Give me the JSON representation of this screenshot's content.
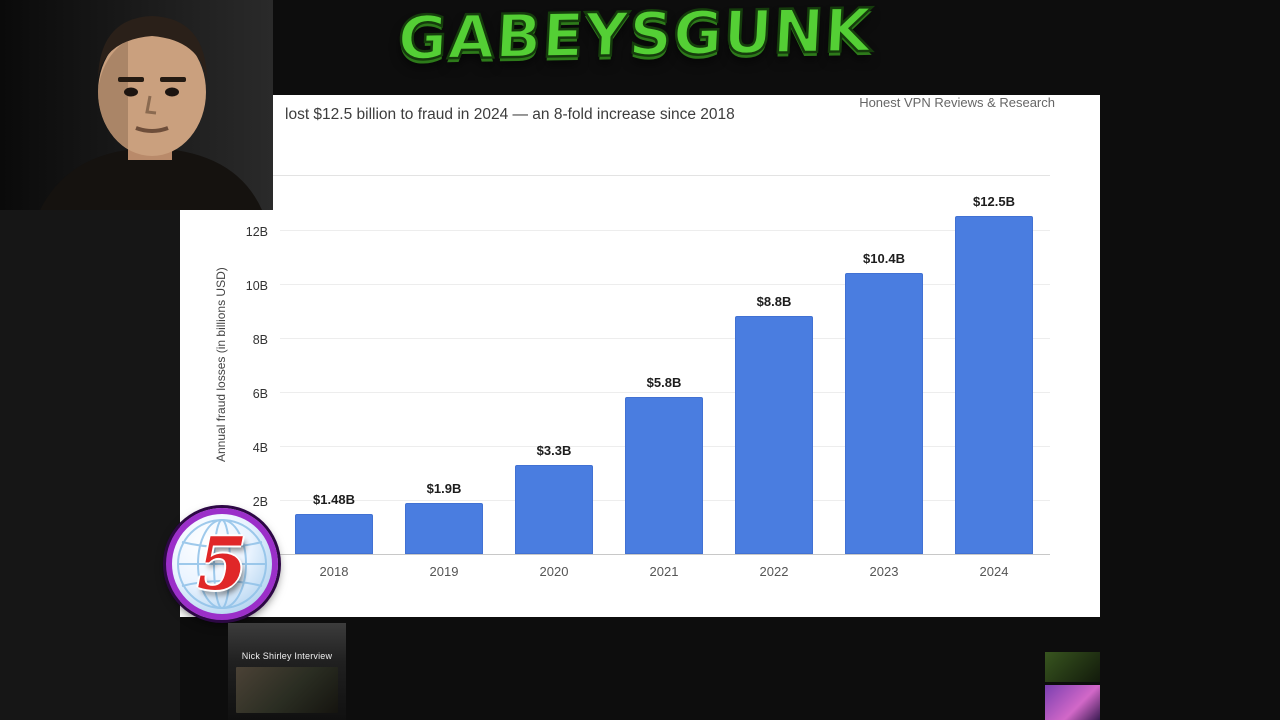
{
  "overlay": {
    "graffiti_text": "GABEYSGUNK",
    "graffiti_color": "#54cf35",
    "logo": {
      "number": "5",
      "ring_color": "#9b2fc9",
      "number_color": "#e02728"
    },
    "bottom_left_caption": "Nick Shirley Interview"
  },
  "chart_panel": {
    "headline": "lost $12.5 billion to fraud in 2024 — an 8-fold increase since 2018",
    "attribution": "Honest VPN Reviews & Research"
  },
  "chart_data": {
    "type": "bar",
    "title": "lost $12.5 billion to fraud in 2024 — an 8-fold increase since 2018",
    "categories": [
      "2018",
      "2019",
      "2020",
      "2021",
      "2022",
      "2023",
      "2024"
    ],
    "values": [
      1.48,
      1.9,
      3.3,
      5.8,
      8.8,
      10.4,
      12.5
    ],
    "value_labels": [
      "$1.48B",
      "$1.9B",
      "$3.3B",
      "$5.8B",
      "$8.8B",
      "$10.4B",
      "$12.5B"
    ],
    "xlabel": "",
    "ylabel": "Annual fraud losses (in billions USD)",
    "yticks": [
      "2B",
      "4B",
      "6B",
      "8B",
      "10B",
      "12B"
    ],
    "ytick_values": [
      2,
      4,
      6,
      8,
      10,
      12
    ],
    "ylim": [
      0,
      13.2
    ],
    "bar_color": "#4a7de0",
    "grid": true,
    "legend": "none"
  }
}
